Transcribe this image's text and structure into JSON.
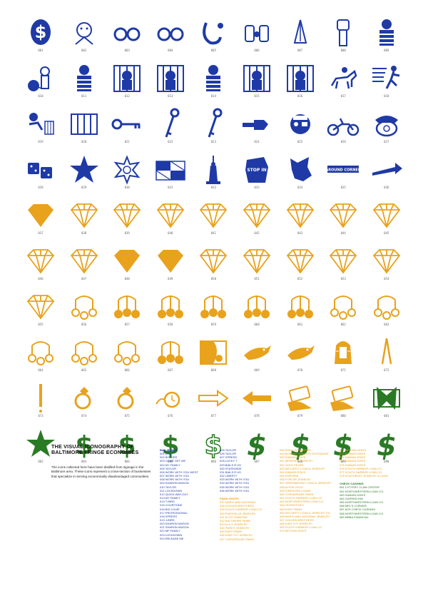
{
  "palette": {
    "blue": "#1f3aa6",
    "orange": "#e8a21c",
    "green": "#2a7a25"
  },
  "icons": [
    {
      "num": "001",
      "color": "blue",
      "shape": "dollar-badge"
    },
    {
      "num": "002",
      "color": "blue",
      "shape": "cartoon-figure"
    },
    {
      "num": "003",
      "color": "blue",
      "shape": "handcuffs"
    },
    {
      "num": "004",
      "color": "blue",
      "shape": "handcuffs"
    },
    {
      "num": "005",
      "color": "blue",
      "shape": "handcuff-single"
    },
    {
      "num": "006",
      "color": "blue",
      "shape": "hands-cuffed"
    },
    {
      "num": "007",
      "color": "blue",
      "shape": "praying-hands"
    },
    {
      "num": "008",
      "color": "blue",
      "shape": "raised-fist"
    },
    {
      "num": "009",
      "color": "blue",
      "shape": "prisoner"
    },
    {
      "num": "010",
      "color": "blue",
      "shape": "ball-and-chain"
    },
    {
      "num": "011",
      "color": "blue",
      "shape": "prisoner"
    },
    {
      "num": "012",
      "color": "blue",
      "shape": "jail-cell"
    },
    {
      "num": "013",
      "color": "blue",
      "shape": "jail-cell"
    },
    {
      "num": "014",
      "color": "blue",
      "shape": "prisoner"
    },
    {
      "num": "015",
      "color": "blue",
      "shape": "jail-cell"
    },
    {
      "num": "016",
      "color": "blue",
      "shape": "jail-cell"
    },
    {
      "num": "017",
      "color": "blue",
      "shape": "horse-rider"
    },
    {
      "num": "018",
      "color": "blue",
      "shape": "running-man"
    },
    {
      "num": "019",
      "color": "blue",
      "shape": "escape-bird"
    },
    {
      "num": "020",
      "color": "blue",
      "shape": "jail-bars"
    },
    {
      "num": "021",
      "color": "blue",
      "shape": "key"
    },
    {
      "num": "022",
      "color": "blue",
      "shape": "key-vertical"
    },
    {
      "num": "023",
      "color": "blue",
      "shape": "key-vertical"
    },
    {
      "num": "024",
      "color": "blue",
      "shape": "pointing-hand"
    },
    {
      "num": "025",
      "color": "blue",
      "shape": "pirate-face"
    },
    {
      "num": "026",
      "color": "blue",
      "shape": "motorcycle"
    },
    {
      "num": "027",
      "color": "blue",
      "shape": "telephone"
    },
    {
      "num": "028",
      "color": "blue",
      "shape": "dice"
    },
    {
      "num": "029",
      "color": "blue",
      "shape": "star"
    },
    {
      "num": "030",
      "color": "blue",
      "shape": "sheriff-star"
    },
    {
      "num": "031",
      "color": "blue",
      "shape": "maryland-flag"
    },
    {
      "num": "032",
      "color": "blue",
      "shape": "statue-of-liberty"
    },
    {
      "num": "033",
      "color": "blue",
      "shape": "stop-sign-shape",
      "label": "STOP IN"
    },
    {
      "num": "034",
      "color": "blue",
      "shape": "torn-shape"
    },
    {
      "num": "035",
      "color": "blue",
      "shape": "banner",
      "label": "AROUND CORNER"
    },
    {
      "num": "036",
      "color": "blue",
      "shape": "arrow-right"
    },
    {
      "num": "037",
      "color": "orange",
      "shape": "diamond-solid"
    },
    {
      "num": "038",
      "color": "orange",
      "shape": "diamond-outline"
    },
    {
      "num": "039",
      "color": "orange",
      "shape": "diamond-outline"
    },
    {
      "num": "040",
      "color": "orange",
      "shape": "diamond-outline"
    },
    {
      "num": "041",
      "color": "orange",
      "shape": "diamond-outline"
    },
    {
      "num": "042",
      "color": "orange",
      "shape": "diamond-outline"
    },
    {
      "num": "043",
      "color": "orange",
      "shape": "diamond-outline"
    },
    {
      "num": "044",
      "color": "orange",
      "shape": "diamond-outline"
    },
    {
      "num": "045",
      "color": "orange",
      "shape": "diamond-outline"
    },
    {
      "num": "046",
      "color": "orange",
      "shape": "diamond-outline"
    },
    {
      "num": "047",
      "color": "orange",
      "shape": "diamond-outline"
    },
    {
      "num": "048",
      "color": "orange",
      "shape": "diamond-solid"
    },
    {
      "num": "049",
      "color": "orange",
      "shape": "diamond-solid"
    },
    {
      "num": "050",
      "color": "orange",
      "shape": "diamond-outline"
    },
    {
      "num": "051",
      "color": "orange",
      "shape": "diamond-outline"
    },
    {
      "num": "052",
      "color": "orange",
      "shape": "diamond-outline"
    },
    {
      "num": "053",
      "color": "orange",
      "shape": "diamond-outline"
    },
    {
      "num": "054",
      "color": "orange",
      "shape": "diamond-outline"
    },
    {
      "num": "055",
      "color": "orange",
      "shape": "diamond-outline"
    },
    {
      "num": "056",
      "color": "orange",
      "shape": "pawn-balls-outline"
    },
    {
      "num": "057",
      "color": "orange",
      "shape": "pawn-balls-solid"
    },
    {
      "num": "058",
      "color": "orange",
      "shape": "pawn-balls-solid"
    },
    {
      "num": "059",
      "color": "orange",
      "shape": "pawn-balls-solid"
    },
    {
      "num": "060",
      "color": "orange",
      "shape": "pawn-balls-solid"
    },
    {
      "num": "061",
      "color": "orange",
      "shape": "pawn-balls-solid"
    },
    {
      "num": "062",
      "color": "orange",
      "shape": "pawn-balls-outline"
    },
    {
      "num": "063",
      "color": "orange",
      "shape": "pawn-balls-outline"
    },
    {
      "num": "064",
      "color": "orange",
      "shape": "pawn-balls-outline"
    },
    {
      "num": "065",
      "color": "orange",
      "shape": "pawn-balls-outline"
    },
    {
      "num": "066",
      "color": "orange",
      "shape": "pawn-balls-outline"
    },
    {
      "num": "067",
      "color": "orange",
      "shape": "pawn-balls-solid"
    },
    {
      "num": "068",
      "color": "orange",
      "shape": "pawn-graphic"
    },
    {
      "num": "069",
      "color": "orange",
      "shape": "bird-illustration"
    },
    {
      "num": "070",
      "color": "orange",
      "shape": "bird-illustration"
    },
    {
      "num": "071",
      "color": "orange",
      "shape": "pharaoh"
    },
    {
      "num": "072",
      "color": "orange",
      "shape": "tweezers"
    },
    {
      "num": "073",
      "color": "orange",
      "shape": "exclamation"
    },
    {
      "num": "074",
      "color": "orange",
      "shape": "ring"
    },
    {
      "num": "075",
      "color": "orange",
      "shape": "ring"
    },
    {
      "num": "076",
      "color": "orange",
      "shape": "watch"
    },
    {
      "num": "077",
      "color": "orange",
      "shape": "arrow-right-outline"
    },
    {
      "num": "078",
      "color": "orange",
      "shape": "arrow-left"
    },
    {
      "num": "079",
      "color": "orange",
      "shape": "hand-with-money"
    },
    {
      "num": "080",
      "color": "orange",
      "shape": "hand-with-money"
    },
    {
      "num": "081",
      "color": "green",
      "shape": "money-bow"
    },
    {
      "num": "082",
      "color": "green",
      "shape": "star"
    },
    {
      "num": "083",
      "color": "green",
      "shape": "dollar"
    },
    {
      "num": "084",
      "color": "green",
      "shape": "dollar"
    },
    {
      "num": "085",
      "color": "green",
      "shape": "dollar"
    },
    {
      "num": "086",
      "color": "green",
      "shape": "dollar-outline"
    },
    {
      "num": "087",
      "color": "green",
      "shape": "dollar-bold"
    },
    {
      "num": "088",
      "color": "green",
      "shape": "dollar-bold"
    },
    {
      "num": "089",
      "color": "green",
      "shape": "dollar-bold"
    },
    {
      "num": "090",
      "color": "green",
      "shape": "dollar-bold"
    }
  ],
  "legend": {
    "title_line1": "THE VISUAL ICONOGRAPHY OF",
    "title_line2": "BALTIMORE FRINGE ECONOMIES",
    "intro": "The icons collected here have been distilled from signage in the Baltimore area. These icons represent a cross-section of businesses that specialize in serving economically disadvantaged communities.",
    "col1_header": "BAIL BONDS",
    "col1": [
      "001  DOL",
      "002  BOLDER",
      "003  COME GET ME",
      "004  MY FAMILY",
      "005  TAYLOR",
      "006  WORK WITH YOU WEST",
      "007  WORK WITH YOU",
      "008  WORK WITH YOU",
      "009  SHARON MASON",
      "010  TAYLOR",
      "011  LOCKDOWN",
      "012  QUICK-WAY-OUT",
      "013  MY FAMILY",
      "014  T-BIRD",
      "015  COURTSIDE",
      "016  BIG LOUIE",
      "017  PROFESSIONAL",
      "018  XPRESS",
      "019  J-BIRD",
      "020  SHARON MASON",
      "021  SHARON MASON",
      "022  MF FAMILY",
      "023  LOCKDOWN",
      "024  RELEASE ME"
    ],
    "col2": [
      "025  TAYLOR",
      "026  TAYLOR",
      "027  XPRESS",
      "028  LUCKY 7",
      "029  BAILS R US",
      "030  STATEWIDE",
      "031  BAILS R US",
      "032  LIBERTY",
      "033  WORK WITH YOU",
      "034  WORK WITH YOU",
      "035  WORK WITH YOU",
      "036  WORK WITH YOU"
    ],
    "col2_header": "PAWN SHOPS",
    "col2b": [
      "037  MARYLAND NATIONAL",
      "038  GOLDEN BROTHERS",
      "039  SOUTH HARBOR LOAN CO.",
      "040  PIKESVILLE JEWELRY",
      "041  ELITE DIAMOND",
      "042  BALTIMORE PAWN",
      "043  M & G JEWELRY",
      "044  PARK'S JEWELRY",
      "045  EASY PAWN",
      "046  KING TUT JEWELRY",
      "047  CHESAPEAKE PAWN"
    ],
    "col3": [
      "048  SHELL'S DIAMOND",
      "049  BONDED JEWELRY EXCHANGE",
      "050  SAMUELSON'S",
      "051  MERKIN'S JEWELRY",
      "052  GOLD FEVER",
      "053  SECURITY LOAN & JEWELRY",
      "054  SAMUELSON'S",
      "055  EMPORIA",
      "056  POPLAR JEWELRY",
      "057  GREENMOUNT LOAN & JEWELRY",
      "058  ALPHA GOLD",
      "059  SIMPSONS LOANS",
      "060  CHESAPEAKE PAWN",
      "061  SOUTH HARBOR LOAN CO.",
      "062  NORTHWESTERN LOAN CO.",
      "063  LEVINSTON'S",
      "064  EASY PAWN",
      "065  SECURITY LOAN & JEWELRY CO.",
      "066  MARYLAND NATIONAL JEWELRY",
      "067  GOLDEN BROTHERS",
      "068  KING TUT JEWELRY",
      "069  SOUTH HARBOR LOAN CO.",
      "070  MITCHELSON'S"
    ],
    "col4": [
      "071  MITCHELSON'S",
      "072  SAMUELSON'S",
      "073  SAMUELSON'S",
      "074  SAMUELSON'S",
      "075  SAMUELSON'S",
      "076  SOUTH HARBOR LOAN CO.",
      "077  SOUTH HARBOR LOAN CO.",
      "078  SOUTHEAST JEWELRY & LOAN"
    ],
    "col4_header": "CHECK CASHING",
    "col4b": [
      "081  LOTTERY CLAM CENTER",
      "082  NORTHWESTERN LOAN CO.",
      "083  SAMUELSON'S",
      "084  GARDEN INN",
      "085  NORTHWESTERN LOAN CO.",
      "086  MEL'S CORNER",
      "087  ACE CHECK CASHING",
      "088  NORTHWESTERN LOAN CO.",
      "089  MBBA FINANCIAL"
    ]
  }
}
